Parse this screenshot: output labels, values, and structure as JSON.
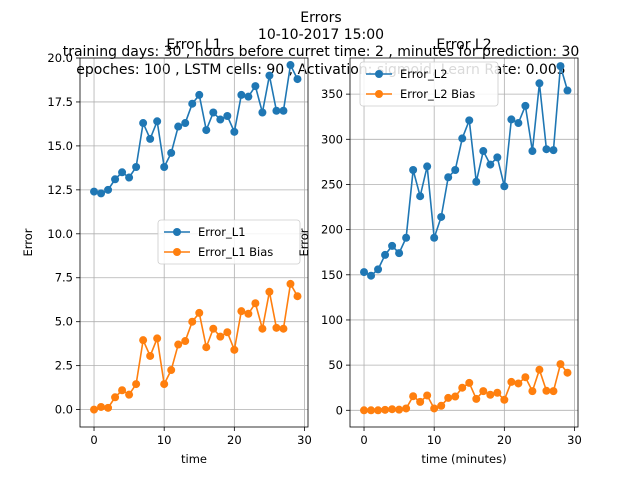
{
  "figure": {
    "suptitle_lines": [
      "Errors",
      "10-10-2017 15:00",
      "training days: 30 , hours before curret time: 2 , minutes for prediction: 30",
      "epoches: 100 , LSTM cells: 90 , Activation: sigmoid, Learn Rate: 0.005"
    ]
  },
  "colors": {
    "series1": "#1f77b4",
    "series2": "#ff7f0e",
    "grid": "#b0b0b0"
  },
  "chart_data": [
    {
      "type": "line",
      "title": "Error L1",
      "xlabel": "time",
      "ylabel": "Error",
      "xlim": [
        -2,
        30.5
      ],
      "ylim": [
        -0.99,
        20.0
      ],
      "xticks": [
        0,
        10,
        20,
        30
      ],
      "yticks": [
        0.0,
        2.5,
        5.0,
        7.5,
        10.0,
        12.5,
        15.0,
        17.5,
        20.0
      ],
      "ytick_labels": [
        "0.0",
        "2.5",
        "5.0",
        "7.5",
        "10.0",
        "12.5",
        "15.0",
        "17.5",
        "20.0"
      ],
      "grid": true,
      "legend_position": "center-right",
      "x": [
        0,
        1,
        2,
        3,
        4,
        5,
        6,
        7,
        8,
        9,
        10,
        11,
        12,
        13,
        14,
        15,
        16,
        17,
        18,
        19,
        20,
        21,
        22,
        23,
        24,
        25,
        26,
        27,
        28,
        29
      ],
      "series": [
        {
          "name": "Error_L1",
          "color": "#1f77b4",
          "values": [
            12.4,
            12.3,
            12.5,
            13.1,
            13.5,
            13.2,
            13.8,
            16.3,
            15.4,
            16.4,
            13.8,
            14.6,
            16.1,
            16.3,
            17.4,
            17.9,
            15.9,
            16.9,
            16.5,
            16.7,
            15.8,
            17.9,
            17.8,
            18.4,
            16.9,
            19.0,
            17.0,
            17.0,
            19.6,
            18.8
          ]
        },
        {
          "name": "Error_L1 Bias",
          "color": "#ff7f0e",
          "values": [
            0.0,
            0.15,
            0.1,
            0.7,
            1.1,
            0.85,
            1.45,
            3.95,
            3.05,
            4.05,
            1.45,
            2.25,
            3.7,
            3.9,
            5.0,
            5.5,
            3.55,
            4.6,
            4.15,
            4.4,
            3.4,
            5.6,
            5.45,
            6.05,
            4.6,
            6.7,
            4.65,
            4.6,
            7.15,
            6.45
          ]
        }
      ]
    },
    {
      "type": "line",
      "title": "Error L2",
      "xlabel": "time (minutes)",
      "ylabel": "Error",
      "xlim": [
        -2,
        30.5
      ],
      "ylim": [
        -18.5,
        390
      ],
      "xticks": [
        0,
        10,
        20,
        30
      ],
      "yticks": [
        0,
        50,
        100,
        150,
        200,
        250,
        300,
        350
      ],
      "ytick_labels": [
        "0",
        "50",
        "100",
        "150",
        "200",
        "250",
        "300",
        "350"
      ],
      "grid": true,
      "legend_position": "upper-left",
      "x": [
        0,
        1,
        2,
        3,
        4,
        5,
        6,
        7,
        8,
        9,
        10,
        11,
        12,
        13,
        14,
        15,
        16,
        17,
        18,
        19,
        20,
        21,
        22,
        23,
        24,
        25,
        26,
        27,
        28,
        29
      ],
      "series": [
        {
          "name": "Error_L2",
          "color": "#1f77b4",
          "values": [
            153,
            149,
            156,
            172,
            182,
            174,
            191,
            266,
            237,
            270,
            191,
            214,
            258,
            266,
            301,
            321,
            253,
            287,
            272,
            280,
            248,
            322,
            318,
            337,
            287,
            362,
            289,
            288,
            381,
            354
          ]
        },
        {
          "name": "Error_L2 Bias",
          "color": "#ff7f0e",
          "values": [
            0,
            0,
            0,
            0.5,
            1.2,
            0.7,
            2,
            15.6,
            9.3,
            16.4,
            2,
            5,
            13.7,
            15.2,
            25,
            30.3,
            12.6,
            21.2,
            17.2,
            19.4,
            11.6,
            31.4,
            29.7,
            36.6,
            21.2,
            44.9,
            21.6,
            21.2,
            51.1,
            41.6
          ]
        }
      ]
    }
  ]
}
